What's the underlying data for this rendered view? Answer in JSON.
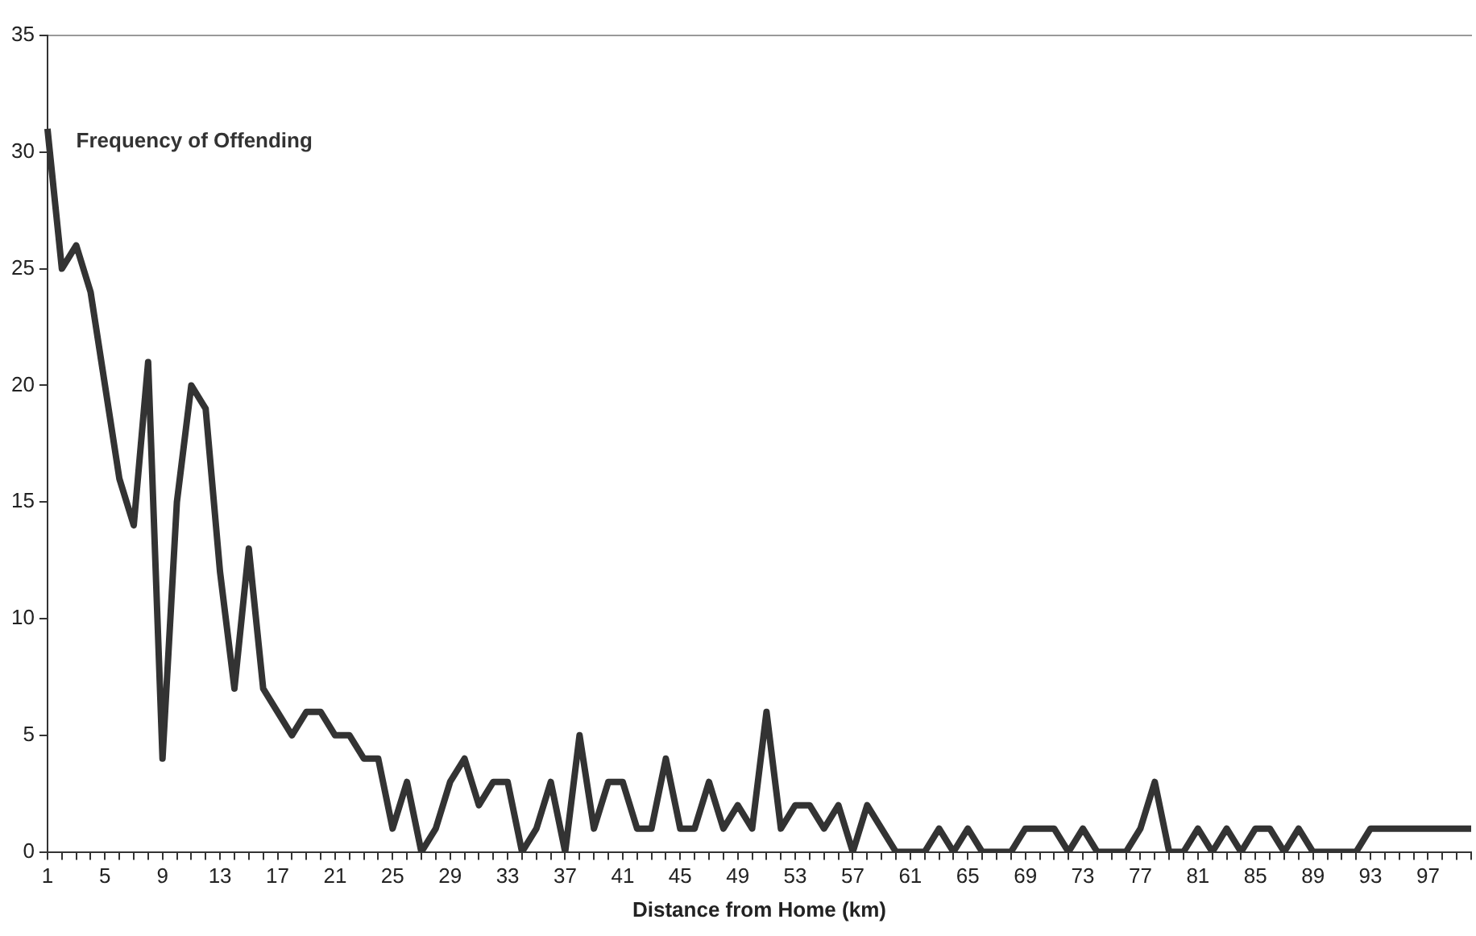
{
  "chart_data": {
    "type": "line",
    "xlabel": "Distance from Home (km)",
    "categories": [
      "1",
      null,
      null,
      null,
      "5",
      null,
      null,
      null,
      "9",
      null,
      null,
      null,
      "13",
      null,
      null,
      null,
      "17",
      null,
      null,
      null,
      "21",
      null,
      null,
      null,
      "25",
      null,
      null,
      null,
      "29",
      null,
      null,
      null,
      "33",
      null,
      null,
      null,
      "37",
      null,
      null,
      null,
      "41",
      null,
      null,
      null,
      "45",
      null,
      null,
      null,
      "49",
      null,
      null,
      null,
      "53",
      null,
      null,
      null,
      "57",
      null,
      null,
      null,
      "61",
      null,
      null,
      null,
      "65",
      null,
      null,
      null,
      "69",
      null,
      null,
      null,
      "73",
      null,
      null,
      null,
      "77",
      null,
      null,
      null,
      "81",
      null,
      null,
      null,
      "85",
      null,
      null,
      null,
      "89",
      null,
      null,
      null,
      "93",
      null,
      null,
      null,
      "97",
      null,
      null,
      null
    ],
    "series": [
      {
        "name": "Frequency of Offending",
        "color": "#333333",
        "values": [
          31,
          25,
          26,
          24,
          20,
          16,
          14,
          21,
          4,
          15,
          20,
          19,
          12,
          7,
          13,
          7,
          6,
          5,
          6,
          6,
          5,
          5,
          4,
          4,
          1,
          3,
          0,
          1,
          3,
          4,
          2,
          3,
          3,
          0,
          1,
          3,
          0,
          5,
          1,
          3,
          3,
          1,
          1,
          4,
          1,
          1,
          3,
          1,
          2,
          1,
          6,
          1,
          2,
          2,
          1,
          2,
          0,
          2,
          1,
          0,
          0,
          0,
          1,
          0,
          1,
          0,
          0,
          0,
          1,
          1,
          1,
          0,
          1,
          0,
          0,
          0,
          1,
          3,
          0,
          0,
          1,
          0,
          1,
          0,
          1,
          1,
          0,
          1,
          0,
          0,
          0,
          0,
          1,
          1,
          1,
          1,
          1,
          1,
          1,
          1
        ]
      }
    ],
    "ylim": [
      0,
      35
    ],
    "yticks": [
      0,
      5,
      10,
      15,
      20,
      25,
      30,
      35
    ],
    "grid": false,
    "legend": false,
    "marker": "none",
    "line_style": "solid"
  }
}
